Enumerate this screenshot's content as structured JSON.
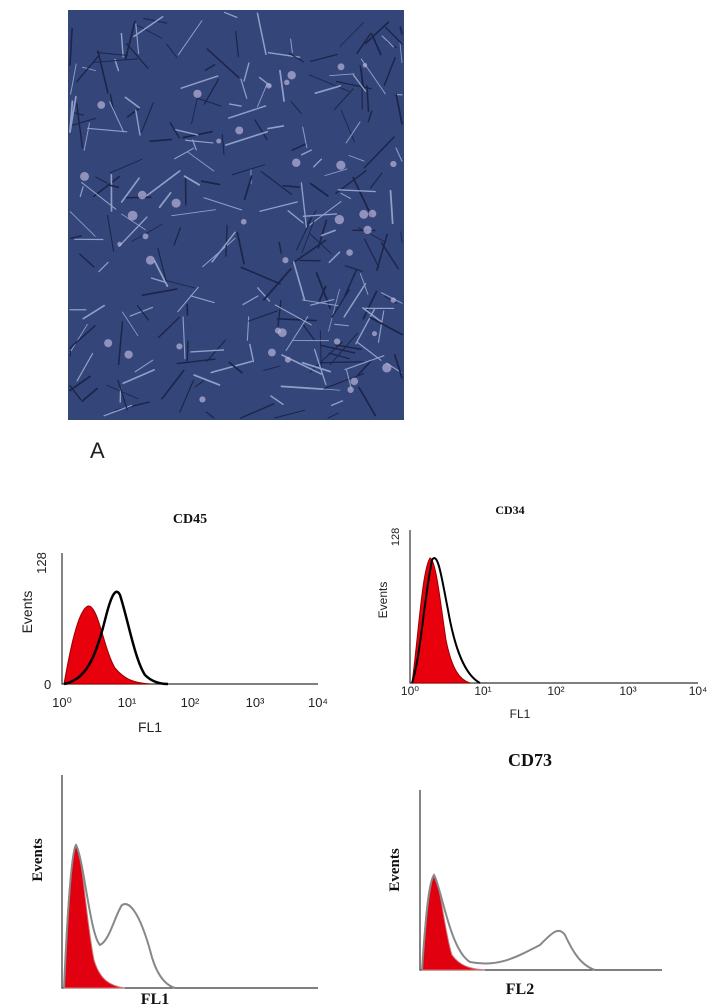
{
  "figure": {
    "label": "A",
    "panels": [
      {
        "title": "CD45",
        "y_label": "Events",
        "y_ticks": [
          "128",
          "0"
        ],
        "x_label": "FL1",
        "x_ticks": [
          "10⁰",
          "10¹",
          "10²",
          "10³",
          "10⁴"
        ]
      },
      {
        "title": "CD34",
        "y_label": "Events",
        "y_ticks": [
          "128"
        ],
        "x_label": "FL1",
        "x_ticks": [
          "10⁰",
          "10¹",
          "10²",
          "10³",
          "10⁴"
        ]
      },
      {
        "y_label": "Events",
        "x_label": "FL1"
      },
      {
        "title": "CD73",
        "y_label": "Events",
        "x_label": "FL2"
      }
    ]
  }
}
